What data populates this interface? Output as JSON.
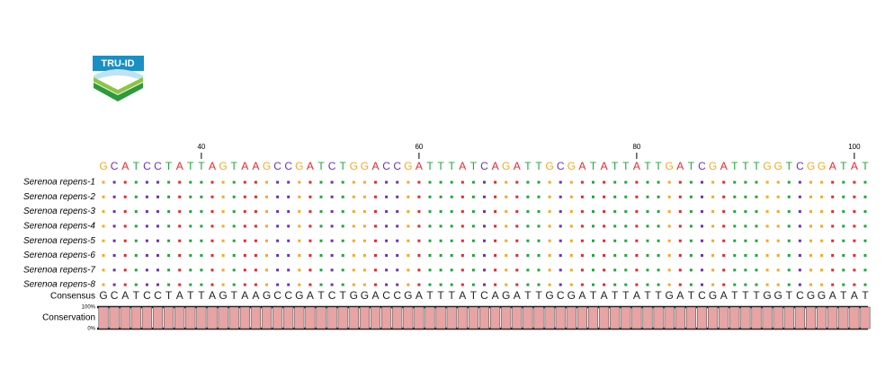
{
  "logo": {
    "text": "TRU-ID"
  },
  "alignment": {
    "xlim": [
      31,
      101
    ],
    "ticks": [
      40,
      60,
      80,
      100
    ],
    "reference": "GCATCCTATTAGTAAGCCGATCTGGACCGATTTATCAGATTGCGATATTATTGATCGATTTGGTCGGATAT",
    "base_colors": {
      "A": "#e8262b",
      "C": "#6a32b4",
      "G": "#f7a823",
      "T": "#21a63c"
    },
    "rows": [
      {
        "name": "Serenoa repens-1",
        "sequence": "GCATCCTATTAGTAAGCCGATCTGGACCGATTTATCAGATTGCGATATTATTGATCGATTTGGTCGGATAT"
      },
      {
        "name": "Serenoa repens-2",
        "sequence": "GCATCCTATTAGTAAGCCGATCTGGACCGATTTATCAGATTGCGATATTATTGATCGATTTGGTCGGATAT"
      },
      {
        "name": "Serenoa repens-3",
        "sequence": "GCATCCTATTAGTAAGCCGATCTGGACCGATTTATCAGATTGCGATATTATTGATCGATTTGGTCGGATAT"
      },
      {
        "name": "Serenoa repens-4",
        "sequence": "GCATCCTATTAGTAAGCCGATCTGGACCGATTTATCAGATTGCGATATTATTGATCGATTTGGTCGGATAT"
      },
      {
        "name": "Serenoa repens-5",
        "sequence": "GCATCCTATTAGTAAGCCGATCTGGACCGATTTATCAGATTGCGATATTATTGATCGATTTGGTCGGATAT"
      },
      {
        "name": "Serenoa repens-6",
        "sequence": "GCATCCTATTAGTAAGCCGATCTGGACCGATTTATCAGATTGCGATATTATTGATCGATTTGGTCGGATAT"
      },
      {
        "name": "Serenoa repens-7",
        "sequence": "GCATCCTATTAGTAAGCCGATCTGGACCGATTTATCAGATTGCGATATTATTGATCGATTTGGTCGGATAT"
      },
      {
        "name": "Serenoa repens-8",
        "sequence": "GCATCCTATTAGTAAGCCGATCTGGACCGATTTATCAGATTGCGATATTATTGATCGATTTGGTCGGATAT"
      }
    ],
    "consensus_label": "Consensus",
    "consensus": "GCATCCTATTAGTAAGCCGATCTGGACCGATTTATCAGATTGCGATATTATTGATCGATTTGGTCGGATAT",
    "conservation": {
      "label": "Conservation",
      "ylim": [
        0,
        100
      ],
      "yticks": [
        {
          "value": 100,
          "label": "100%"
        },
        {
          "value": 0,
          "label": "0%"
        }
      ],
      "color": "#e8a3a3",
      "values": [
        100,
        100,
        100,
        100,
        100,
        100,
        100,
        100,
        100,
        100,
        100,
        100,
        100,
        100,
        100,
        100,
        100,
        100,
        100,
        100,
        100,
        100,
        100,
        100,
        100,
        100,
        100,
        100,
        100,
        100,
        100,
        100,
        100,
        100,
        100,
        100,
        100,
        100,
        100,
        100,
        100,
        100,
        100,
        100,
        100,
        100,
        100,
        100,
        100,
        100,
        100,
        100,
        100,
        100,
        100,
        100,
        100,
        100,
        100,
        100,
        100,
        100,
        100,
        100,
        100,
        100,
        100,
        100,
        100,
        100,
        100
      ]
    }
  }
}
